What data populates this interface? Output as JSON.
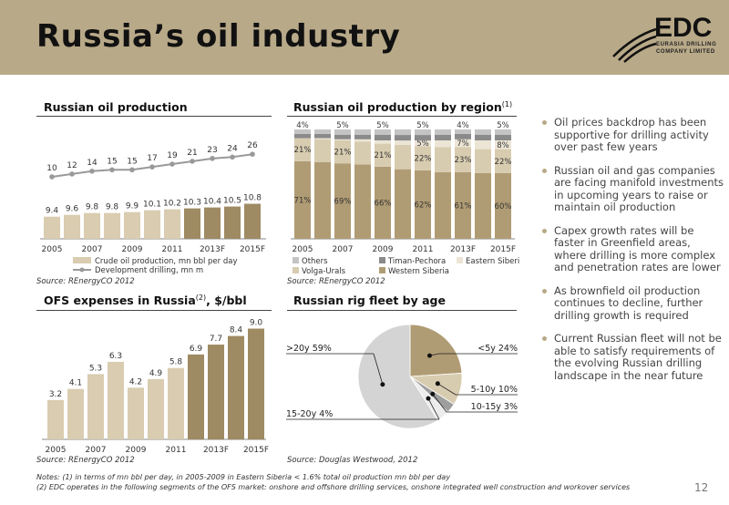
{
  "title": "Russia’s oil industry",
  "logo": {
    "text": "EDC",
    "sub1": "EURASIA DRILLING",
    "sub2": "COMPANY LIMITED"
  },
  "panels": {
    "p1": {
      "title": "Russian oil production",
      "source": "Source: REnergyCO 2012"
    },
    "p2": {
      "title": "Russian oil production by region",
      "title_sup": "(1)",
      "source": "Source: REnergyCO 2012"
    },
    "p3": {
      "title": "OFS expenses in Russia",
      "title_sup": "(2)",
      "title_suffix": ", $/bbl",
      "source": "Source: REnergyCO 2012"
    },
    "p4": {
      "title": "Russian rig fleet by age",
      "source": "Source: Douglas Westwood, 2012"
    }
  },
  "bullets": [
    "Oil prices backdrop has been supportive for drilling activity over past few years",
    "Russian oil and gas companies are facing manifold investments in upcoming years to raise or maintain oil production",
    "Capex growth rates will be faster in Greenfield areas, where drilling is more complex and penetration rates are lower",
    "As brownfield oil production continues to decline, further drilling growth is required",
    "Current Russian fleet will not be able to satisfy requirements of the evolving Russian drilling landscape in the near future"
  ],
  "notes": [
    "Notes: (1) in terms of mn bbl per day, in 2005-2009 in Eastern Siberia < 1.6% total oil production mn bbl per day",
    "(2) EDC operates in the following segments of the OFS market: onshore and offshore drilling services, onshore integrated well construction and workover services"
  ],
  "page_number": "12",
  "colors": {
    "accent": "#b8a988",
    "light": "#d9ccb0",
    "dark": "#9e8a63",
    "line": "#999999"
  },
  "chart_data": [
    {
      "type": "bar",
      "title": "Russian oil production",
      "categories": [
        "2005",
        "2006",
        "2007",
        "2008",
        "2009",
        "2010",
        "2011",
        "2012",
        "2013F",
        "2014F",
        "2015F"
      ],
      "tick_labels": [
        "2005",
        "2007",
        "2009",
        "2011",
        "2013F",
        "2015F"
      ],
      "series": [
        {
          "name": "Crude oil production, mn bbl per day",
          "values": [
            9.4,
            9.6,
            9.8,
            9.8,
            9.9,
            10.1,
            10.2,
            10.3,
            10.4,
            10.5,
            10.8
          ]
        },
        {
          "name": "Development drilling, mn m",
          "type": "line",
          "values": [
            10,
            12,
            14,
            15,
            15,
            17,
            19,
            21,
            23,
            24,
            26
          ]
        }
      ]
    },
    {
      "type": "bar",
      "stacked": true,
      "title": "Russian oil production by region",
      "categories": [
        "2005",
        "2006",
        "2007",
        "2008",
        "2009",
        "2010",
        "2011",
        "2012",
        "2013F",
        "2014F",
        "2015F"
      ],
      "tick_labels": [
        "2005",
        "2007",
        "2009",
        "2011",
        "2013F",
        "2015F"
      ],
      "series": [
        {
          "name": "Western Siberia",
          "values": [
            71,
            70,
            69,
            68,
            66,
            63,
            62,
            61,
            61,
            60,
            60
          ],
          "labels": [
            "71%",
            "",
            "69%",
            "",
            "66%",
            "",
            "62%",
            "",
            "61%",
            "",
            "60%"
          ]
        },
        {
          "name": "Volga-Urals",
          "values": [
            21,
            21,
            21,
            21,
            21,
            22,
            22,
            23,
            23,
            22,
            22
          ],
          "labels": [
            "21%",
            "",
            "21%",
            "",
            "21%",
            "",
            "22%",
            "",
            "23%",
            "",
            "22%"
          ]
        },
        {
          "name": "Eastern Siberia",
          "values": [
            0,
            1,
            1,
            2,
            3,
            4,
            5,
            6,
            7,
            8,
            8
          ],
          "labels": [
            "",
            "",
            "",
            "",
            "",
            "",
            "5%",
            "",
            "7%",
            "",
            "8%"
          ]
        },
        {
          "name": "Timan-Pechora",
          "values": [
            4,
            4,
            4,
            4,
            5,
            5,
            5,
            5,
            5,
            5,
            5
          ],
          "labels": [
            "",
            "",
            "",
            "",
            "",
            "",
            "",
            "",
            "",
            "",
            ""
          ]
        },
        {
          "name": "Others",
          "values": [
            4,
            4,
            5,
            5,
            5,
            5,
            5,
            5,
            4,
            5,
            5
          ],
          "labels": [
            "4%",
            "",
            "5%",
            "",
            "5%",
            "",
            "5%",
            "",
            "4%",
            "",
            "5%"
          ]
        }
      ],
      "legend": [
        "Others",
        "Timan-Pechora",
        "Eastern Siberia",
        "Volga-Urals",
        "Western Siberia"
      ]
    },
    {
      "type": "bar",
      "title": "OFS expenses in Russia, $/bbl",
      "categories": [
        "2005",
        "2006",
        "2007",
        "2008",
        "2009",
        "2010",
        "2011",
        "2012",
        "2013F",
        "2014F",
        "2015F"
      ],
      "tick_labels": [
        "2005",
        "2007",
        "2009",
        "2011",
        "2013F",
        "2015F"
      ],
      "values": [
        3.2,
        4.1,
        5.3,
        6.3,
        4.2,
        4.9,
        5.8,
        6.9,
        7.7,
        8.4,
        9.0
      ],
      "labels": [
        "3.2",
        "4.1",
        "5.3",
        "6.3",
        "4.2",
        "4.9",
        "5.8",
        "6.9",
        "7.7",
        "8.4",
        "9.0"
      ]
    },
    {
      "type": "pie",
      "title": "Russian rig fleet by age",
      "slices": [
        {
          "label": "<5y 24%",
          "value": 24
        },
        {
          "label": "5-10y 10%",
          "value": 10
        },
        {
          "label": "10-15y 3%",
          "value": 3
        },
        {
          "label": "15-20y 4%",
          "value": 4
        },
        {
          "label": ">20y 59%",
          "value": 59
        }
      ]
    }
  ]
}
